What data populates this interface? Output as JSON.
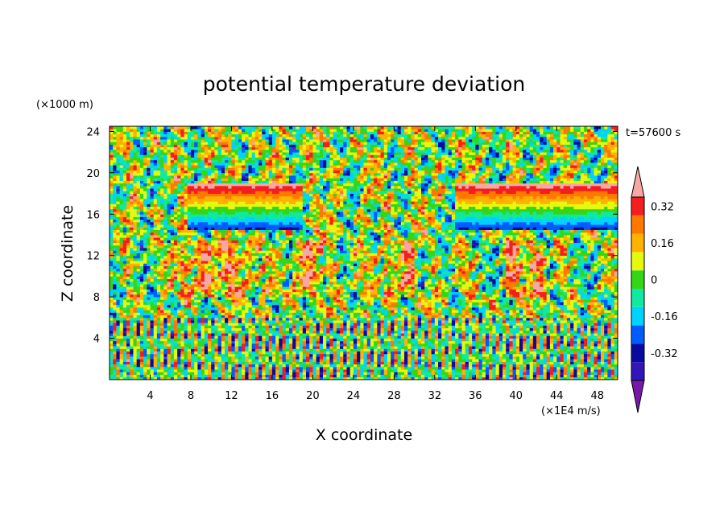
{
  "chart_data": {
    "type": "heatmap",
    "title": "potential temperature deviation",
    "xlabel": "X coordinate",
    "ylabel": "Z coordinate",
    "x_unit": "(×1E4 m/s)",
    "y_unit": "(×1000 m)",
    "time_label": "t=57600 s",
    "xlim": [
      0,
      50
    ],
    "ylim": [
      0,
      24.5
    ],
    "x_ticks": [
      4,
      8,
      12,
      16,
      20,
      24,
      28,
      32,
      36,
      40,
      44,
      48
    ],
    "y_ticks": [
      4,
      8,
      12,
      16,
      20,
      24
    ],
    "colorbar": {
      "levels": [
        -0.4,
        -0.32,
        -0.24,
        -0.16,
        -0.08,
        0,
        0.08,
        0.16,
        0.24,
        0.32,
        0.4
      ],
      "labels": [
        "0.32",
        "0.16",
        "0",
        "-0.16",
        "-0.32"
      ],
      "label_values": [
        0.32,
        0.16,
        0,
        -0.16,
        -0.32
      ],
      "extend": "both",
      "colors": [
        "#7719a8",
        "#3316b8",
        "#0a0a9e",
        "#005cff",
        "#00d2ff",
        "#11e9a0",
        "#35d617",
        "#e5f810",
        "#ffb200",
        "#ff7800",
        "#f41e1e",
        "#f6a9a4"
      ]
    },
    "features": [
      {
        "description": "warm deviation band",
        "x_range": [
          7.5,
          19
        ],
        "z_range": [
          14.5,
          19
        ]
      },
      {
        "description": "warm deviation band",
        "x_range": [
          34,
          50
        ],
        "z_range": [
          14.5,
          19
        ]
      },
      {
        "description": "mixed small-scale deviations",
        "x_range": [
          0,
          50
        ],
        "z_range": [
          0,
          6
        ]
      }
    ]
  }
}
